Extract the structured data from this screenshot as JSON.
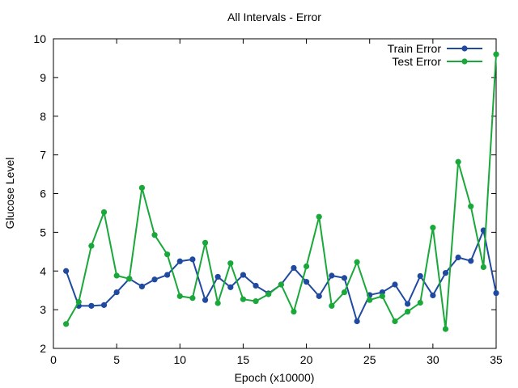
{
  "chart_data": {
    "type": "line",
    "title": "All Intervals - Error",
    "xlabel": "Epoch (x10000)",
    "ylabel": "Glucose Level",
    "xlim": [
      0,
      35
    ],
    "ylim": [
      2,
      10
    ],
    "xticks": [
      0,
      5,
      10,
      15,
      20,
      25,
      30,
      35
    ],
    "yticks": [
      2,
      3,
      4,
      5,
      6,
      7,
      8,
      9,
      10
    ],
    "grid": false,
    "legend_position": "top-right",
    "x": [
      1,
      2,
      3,
      4,
      5,
      6,
      7,
      8,
      9,
      10,
      11,
      12,
      13,
      14,
      15,
      16,
      17,
      18,
      19,
      20,
      21,
      22,
      23,
      24,
      25,
      26,
      27,
      28,
      29,
      30,
      31,
      32,
      33,
      34,
      35
    ],
    "series": [
      {
        "name": "Train Error",
        "color": "#1f4aa0",
        "values": [
          4.0,
          3.1,
          3.1,
          3.12,
          3.45,
          3.8,
          3.6,
          3.78,
          3.9,
          4.25,
          4.3,
          3.25,
          3.85,
          3.58,
          3.9,
          3.62,
          3.42,
          3.65,
          4.08,
          3.72,
          3.35,
          3.88,
          3.82,
          2.7,
          3.38,
          3.45,
          3.65,
          3.15,
          3.87,
          3.37,
          3.95,
          4.35,
          4.26,
          5.05,
          3.43
        ]
      },
      {
        "name": "Test Error",
        "color": "#1aa83a",
        "values": [
          2.63,
          3.2,
          4.65,
          5.52,
          3.88,
          3.8,
          6.15,
          4.93,
          4.43,
          3.35,
          3.3,
          4.73,
          3.17,
          4.2,
          3.27,
          3.22,
          3.4,
          3.65,
          2.95,
          4.12,
          5.4,
          3.1,
          3.45,
          4.23,
          3.25,
          3.35,
          2.7,
          2.95,
          3.18,
          5.12,
          2.5,
          6.82,
          5.67,
          4.1,
          9.6
        ]
      }
    ]
  }
}
